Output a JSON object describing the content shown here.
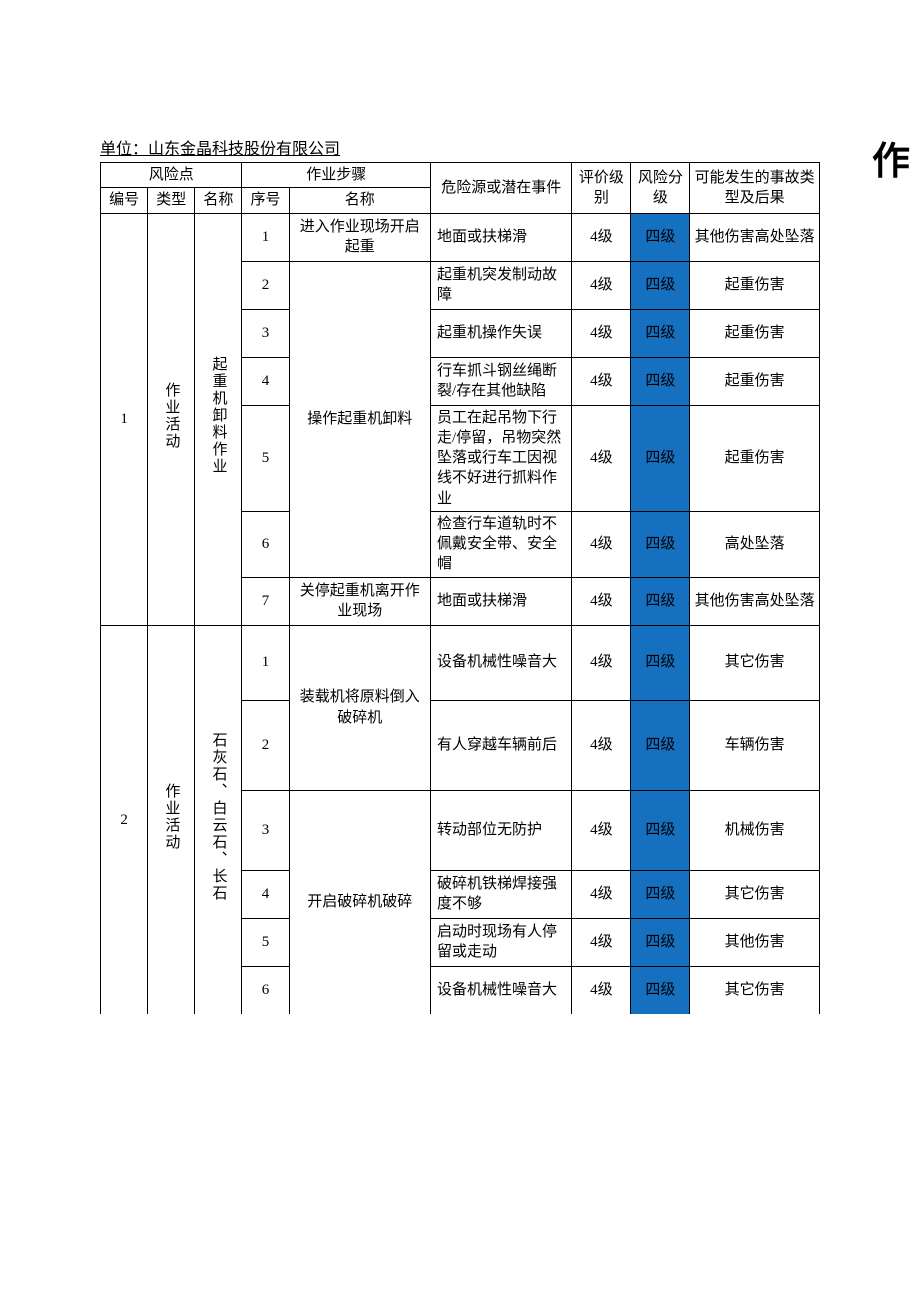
{
  "colors": {
    "risk_bg": "#1670c0",
    "border": "#000000",
    "background": "#ffffff",
    "text": "#000000"
  },
  "title_fragment": "作",
  "unit_label": "单位：",
  "unit_name": "山东金晶科技股份有限公司",
  "headers": {
    "risk_point": "风险点",
    "work_step": "作业步骤",
    "hazard": "危险源或潜在事件",
    "eval": "评价级别",
    "risk": "风险分级",
    "conseq": "可能发生的事故类型及后果",
    "no": "编号",
    "type": "类型",
    "name": "名称",
    "seq": "序号",
    "step_name": "名称"
  },
  "groups": [
    {
      "no": "1",
      "type": "作业活动",
      "name": "起重机卸料作业",
      "rows": [
        {
          "seq": "1",
          "step": "进入作业现场开启起重",
          "hazard": "地面或扶梯滑",
          "eval": "4级",
          "risk": "四级",
          "conseq": "其他伤害高处坠落",
          "step_rowspan": 1
        },
        {
          "seq": "2",
          "step": "操作起重机卸料",
          "hazard": "起重机突发制动故障",
          "eval": "4级",
          "risk": "四级",
          "conseq": "起重伤害",
          "step_rowspan": 5
        },
        {
          "seq": "3",
          "step": "",
          "hazard": "起重机操作失误",
          "eval": "4级",
          "risk": "四级",
          "conseq": "起重伤害"
        },
        {
          "seq": "4",
          "step": "",
          "hazard": "行车抓斗钢丝绳断裂/存在其他缺陷",
          "eval": "4级",
          "risk": "四级",
          "conseq": "起重伤害"
        },
        {
          "seq": "5",
          "step": "",
          "hazard": "员工在起吊物下行走/停留，吊物突然坠落或行车工因视线不好进行抓料作业",
          "eval": "4级",
          "risk": "四级",
          "conseq": "起重伤害"
        },
        {
          "seq": "6",
          "step": "",
          "hazard": "检查行车道轨时不佩戴安全带、安全帽",
          "eval": "4级",
          "risk": "四级",
          "conseq": "高处坠落"
        },
        {
          "seq": "7",
          "step": "关停起重机离开作业现场",
          "hazard": "地面或扶梯滑",
          "eval": "4级",
          "risk": "四级",
          "conseq": "其他伤害高处坠落",
          "step_rowspan": 1
        }
      ]
    },
    {
      "no": "2",
      "type": "作业活动",
      "name": "石灰石、白云石、长石",
      "rows": [
        {
          "seq": "1",
          "step": "装载机将原料倒入破碎机",
          "hazard": "设备机械性噪音大",
          "eval": "4级",
          "risk": "四级",
          "conseq": "其它伤害",
          "step_rowspan": 2
        },
        {
          "seq": "2",
          "step": "",
          "hazard": "有人穿越车辆前后",
          "eval": "4级",
          "risk": "四级",
          "conseq": "车辆伤害"
        },
        {
          "seq": "3",
          "step": "开启破碎机破碎",
          "hazard": "转动部位无防护",
          "eval": "4级",
          "risk": "四级",
          "conseq": "机械伤害",
          "step_rowspan": 4
        },
        {
          "seq": "4",
          "step": "",
          "hazard": "破碎机铁梯焊接强度不够",
          "eval": "4级",
          "risk": "四级",
          "conseq": "其它伤害"
        },
        {
          "seq": "5",
          "step": "",
          "hazard": "启动时现场有人停留或走动",
          "eval": "4级",
          "risk": "四级",
          "conseq": "其他伤害"
        },
        {
          "seq": "6",
          "step": "",
          "hazard": "设备机械性噪音大",
          "eval": "4级",
          "risk": "四级",
          "conseq": "其它伤害"
        }
      ]
    }
  ]
}
